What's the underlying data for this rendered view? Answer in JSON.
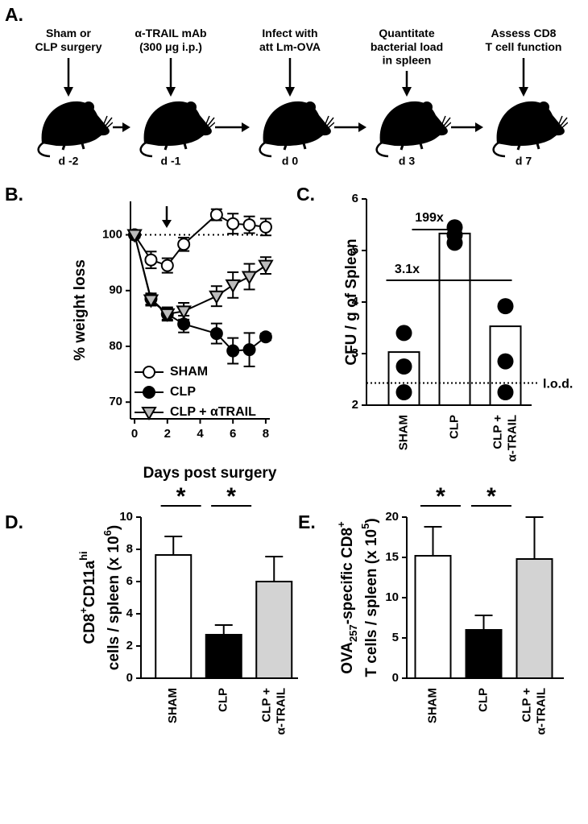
{
  "panel_a": {
    "label": "A.",
    "steps": [
      {
        "text": "Sham or\nCLP surgery",
        "day": "d -2"
      },
      {
        "text": "α-TRAIL mAb\n(300 μg i.p.)",
        "day": "d -1"
      },
      {
        "text": "Infect with\natt Lm-OVA",
        "day": "d 0"
      },
      {
        "text": "Quantitate\nbacterial load\nin spleen",
        "day": "d 3"
      },
      {
        "text": "Assess CD8\nT cell function",
        "day": "d 7"
      }
    ]
  },
  "chart_data": [
    {
      "type": "line",
      "label": "B.",
      "xlabel": "Days post surgery",
      "ylabel": "% weight loss",
      "x": [
        0,
        1,
        2,
        3,
        5,
        6,
        7,
        8
      ],
      "xlim": [
        -0.25,
        8.25
      ],
      "xticks": [
        0,
        2,
        4,
        6,
        8
      ],
      "ylim": [
        67,
        106
      ],
      "yticks": [
        70,
        80,
        90,
        100
      ],
      "hline": 100,
      "legend": "lower left",
      "series": [
        {
          "name": "SHAM",
          "marker": "circle",
          "color": "#000000",
          "fill": "#ffffff",
          "values": [
            100,
            95.5,
            94.5,
            98.3,
            103.6,
            102,
            101.8,
            101.4
          ],
          "errors": [
            0.5,
            1.5,
            1.3,
            1.2,
            1.0,
            1.8,
            1.5,
            1.5
          ]
        },
        {
          "name": "CLP",
          "marker": "circle",
          "color": "#000000",
          "fill": "#000000",
          "values": [
            100,
            88.5,
            85.8,
            84,
            82.3,
            79.2,
            79.4,
            81.7
          ],
          "errors": [
            0.5,
            1.0,
            1.0,
            1.5,
            1.8,
            2.3,
            3.0,
            0.6
          ]
        },
        {
          "name": "CLP + αTRAIL",
          "marker": "triangle",
          "color": "#000000",
          "fill": "#bbbbbb",
          "values": [
            100,
            88.3,
            85.8,
            86.3,
            89,
            91,
            92.5,
            94.5
          ],
          "errors": [
            0.5,
            1.0,
            1.2,
            1.5,
            1.8,
            2.3,
            2.3,
            1.5
          ]
        }
      ]
    },
    {
      "type": "bar_scatter",
      "label": "C.",
      "ylabel": "CFU / g of Spleen",
      "categories": [
        "SHAM",
        "CLP",
        "CLP +\nα-TRAIL"
      ],
      "values": [
        3.03,
        5.33,
        3.53
      ],
      "points": [
        [
          3.4,
          2.75,
          2.25
        ],
        [
          5.45,
          5.3,
          5.15
        ],
        [
          3.92,
          2.85,
          2.25
        ]
      ],
      "ylim": [
        2,
        6
      ],
      "yticks": [
        2,
        3,
        4,
        5,
        6
      ],
      "lod": {
        "value": 2.43,
        "label": "l.o.d."
      },
      "annotations": [
        "199x",
        "3.1x"
      ]
    },
    {
      "type": "bar",
      "label": "D.",
      "ylabel": [
        [
          {
            "text": "CD8"
          },
          {
            "text": "+",
            "sup": true
          },
          {
            "text": "CD11a"
          },
          {
            "text": "hi",
            "sup": true
          }
        ],
        [
          {
            "text": "cells / spleen (x 10"
          },
          {
            "text": "6",
            "sup": true
          },
          {
            "text": ")"
          }
        ]
      ],
      "categories": [
        "SHAM",
        "CLP",
        "CLP +\nα-TRAIL"
      ],
      "values": [
        7.65,
        2.7,
        6.0
      ],
      "errors": [
        1.15,
        0.6,
        1.55
      ],
      "colors": [
        "#ffffff",
        "#000000",
        "#d3d3d3"
      ],
      "ylim": [
        0,
        10
      ],
      "yticks": [
        0,
        2,
        4,
        6,
        8,
        10
      ],
      "significance": [
        "*",
        "*"
      ]
    },
    {
      "type": "bar",
      "label": "E.",
      "ylabel": [
        [
          {
            "text": "OVA"
          },
          {
            "text": "257",
            "sub": true
          },
          {
            "text": "-specific CD8"
          },
          {
            "text": "+",
            "sup": true
          }
        ],
        [
          {
            "text": "T cells / spleen (x 10"
          },
          {
            "text": "5",
            "sup": true
          },
          {
            "text": ")"
          }
        ]
      ],
      "categories": [
        "SHAM",
        "CLP",
        "CLP +\nα-TRAIL"
      ],
      "values": [
        15.2,
        6.0,
        14.8
      ],
      "errors": [
        3.6,
        1.8,
        5.2
      ],
      "colors": [
        "#ffffff",
        "#000000",
        "#d3d3d3"
      ],
      "ylim": [
        0,
        20
      ],
      "yticks": [
        0,
        5,
        10,
        15,
        20
      ],
      "significance": [
        "*",
        "*"
      ]
    }
  ]
}
